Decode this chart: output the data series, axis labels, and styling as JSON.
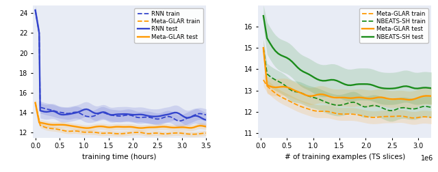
{
  "left": {
    "xlabel": "training time (hours)",
    "xlim": [
      -0.05,
      3.5
    ],
    "ylim": [
      11.5,
      24.8
    ],
    "xticks": [
      0.0,
      0.5,
      1.0,
      1.5,
      2.0,
      2.5,
      3.0,
      3.5
    ],
    "yticks": [
      12,
      14,
      16,
      18,
      20,
      22,
      24
    ],
    "bg_color": "#e8ecf5",
    "rnn_color": "#3344cc",
    "glar_color": "#ff9900",
    "legend": [
      "RNN train",
      "Meta-GLAR train",
      "RNN test",
      "Meta-GLAR test"
    ]
  },
  "right": {
    "xlabel": "# of training examples (TS slices)",
    "xlim": [
      -50000.0,
      3250000.0
    ],
    "ylim": [
      10.8,
      17.0
    ],
    "xticks": [
      0.0,
      500000.0,
      1000000.0,
      1500000.0,
      2000000.0,
      2500000.0,
      3000000.0
    ],
    "yticks": [
      11,
      12,
      13,
      14,
      15,
      16
    ],
    "bg_color": "#e8ecf5",
    "glar_color": "#ff9900",
    "nbeats_color": "#1a8c1a",
    "legend": [
      "Meta-GLAR train",
      "NBEATS-SH train",
      "Meta-GLAR test",
      "NBEATS-SH test"
    ]
  }
}
